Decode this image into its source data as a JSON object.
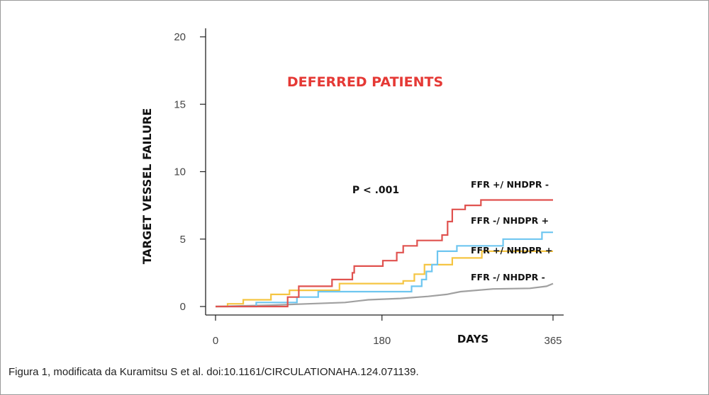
{
  "caption": "Figura 1, modificata da Kuramitsu S et al. doi:10.1161/CIRCULATIONAHA.124.071139.",
  "chart_data": {
    "type": "line",
    "step": true,
    "title": "DEFERRED  PATIENTS",
    "title_color": "#e53935",
    "ylabel": "TARGET VESSEL FAILURE",
    "xlabel": "DAYS",
    "annotation": "P  < .001",
    "xlim": [
      0,
      365
    ],
    "ylim": [
      0,
      20
    ],
    "x_ticks": [
      0,
      180,
      365
    ],
    "y_ticks": [
      0,
      5,
      10,
      15,
      20
    ],
    "grid": false,
    "series": [
      {
        "name": "FFR +/ NHDPR -",
        "color": "#e0524f",
        "points": [
          [
            0,
            0
          ],
          [
            78,
            0
          ],
          [
            78,
            0.7
          ],
          [
            90,
            0.7
          ],
          [
            90,
            1.5
          ],
          [
            126,
            1.5
          ],
          [
            126,
            2
          ],
          [
            148,
            2
          ],
          [
            148,
            2.5
          ],
          [
            150,
            2.5
          ],
          [
            150,
            3
          ],
          [
            181,
            3
          ],
          [
            181,
            3.4
          ],
          [
            196,
            3.4
          ],
          [
            196,
            4
          ],
          [
            203,
            4
          ],
          [
            203,
            4.5
          ],
          [
            218,
            4.5
          ],
          [
            218,
            4.9
          ],
          [
            245,
            4.9
          ],
          [
            245,
            5.3
          ],
          [
            251,
            5.3
          ],
          [
            251,
            6.3
          ],
          [
            256,
            6.3
          ],
          [
            256,
            7.2
          ],
          [
            270,
            7.2
          ],
          [
            270,
            7.5
          ],
          [
            287,
            7.5
          ],
          [
            287,
            7.9
          ],
          [
            365,
            7.9
          ]
        ]
      },
      {
        "name": "FFR -/ NHDPR +",
        "color": "#6ec6f0",
        "points": [
          [
            0,
            0
          ],
          [
            44,
            0
          ],
          [
            44,
            0.3
          ],
          [
            88,
            0.3
          ],
          [
            88,
            0.7
          ],
          [
            111,
            0.7
          ],
          [
            111,
            1.1
          ],
          [
            212,
            1.1
          ],
          [
            212,
            1.5
          ],
          [
            223,
            1.5
          ],
          [
            223,
            2
          ],
          [
            228,
            2
          ],
          [
            228,
            2.6
          ],
          [
            234,
            2.6
          ],
          [
            234,
            3.1
          ],
          [
            240,
            3.1
          ],
          [
            240,
            4.1
          ],
          [
            261,
            4.1
          ],
          [
            261,
            4.5
          ],
          [
            311,
            4.5
          ],
          [
            311,
            5
          ],
          [
            353,
            5
          ],
          [
            353,
            5.5
          ],
          [
            365,
            5.5
          ]
        ]
      },
      {
        "name": "FFR +/ NHDPR +",
        "color": "#f5c542",
        "points": [
          [
            0,
            0
          ],
          [
            13,
            0
          ],
          [
            13,
            0.2
          ],
          [
            30,
            0.2
          ],
          [
            30,
            0.5
          ],
          [
            60,
            0.5
          ],
          [
            60,
            0.9
          ],
          [
            80,
            0.9
          ],
          [
            80,
            1.2
          ],
          [
            134,
            1.2
          ],
          [
            134,
            1.7
          ],
          [
            203,
            1.7
          ],
          [
            203,
            1.9
          ],
          [
            215,
            1.9
          ],
          [
            215,
            2.4
          ],
          [
            226,
            2.4
          ],
          [
            226,
            3.1
          ],
          [
            256,
            3.1
          ],
          [
            256,
            3.6
          ],
          [
            288,
            3.6
          ],
          [
            288,
            4.1
          ],
          [
            365,
            4.1
          ]
        ]
      },
      {
        "name": "FFR -/ NHDPR -",
        "color": "#a0a0a0",
        "points": [
          [
            0,
            0
          ],
          [
            60,
            0.1
          ],
          [
            100,
            0.2
          ],
          [
            140,
            0.3
          ],
          [
            165,
            0.5
          ],
          [
            200,
            0.6
          ],
          [
            230,
            0.75
          ],
          [
            250,
            0.9
          ],
          [
            265,
            1.1
          ],
          [
            300,
            1.3
          ],
          [
            340,
            1.35
          ],
          [
            358,
            1.5
          ],
          [
            365,
            1.7
          ]
        ]
      }
    ]
  }
}
